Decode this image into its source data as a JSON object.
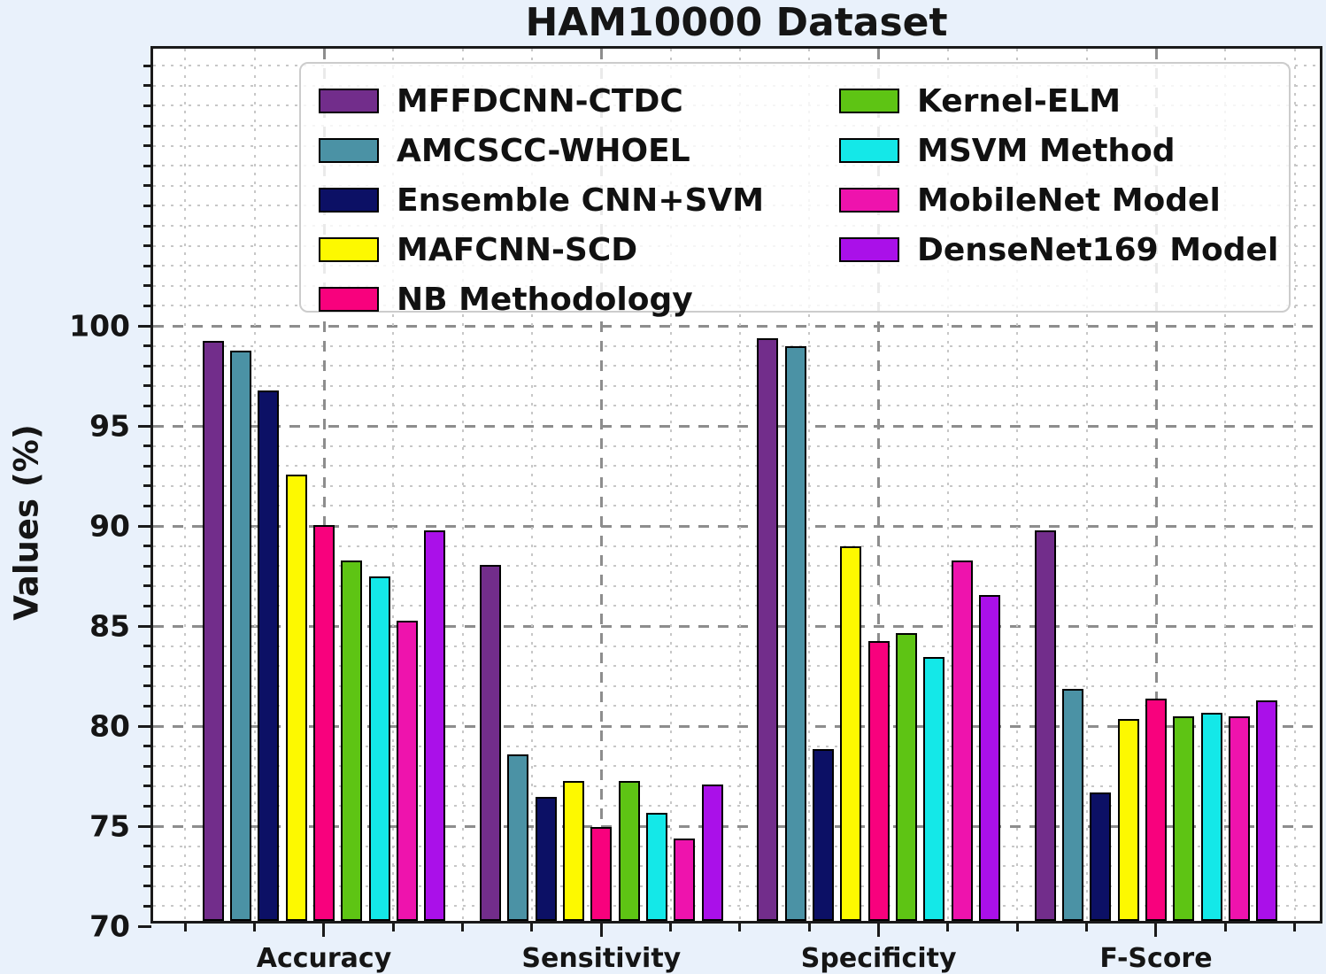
{
  "chart_data": {
    "type": "bar",
    "title": "HAM10000 Dataset",
    "xlabel": "",
    "ylabel": "Values (%)",
    "categories": [
      "Accuracy",
      "Sensitivity",
      "Specificity",
      "F-Score"
    ],
    "series": [
      {
        "name": "MFFDCNN-CTDC",
        "color": "#722d8b",
        "values": [
          99.0,
          87.8,
          99.1,
          89.5
        ]
      },
      {
        "name": "AMCSCC-WHOEL",
        "color": "#4b92a5",
        "values": [
          98.5,
          78.3,
          98.7,
          81.6
        ]
      },
      {
        "name": "Ensemble CNN+SVM",
        "color": "#0c1065",
        "values": [
          96.5,
          76.2,
          78.6,
          76.4
        ]
      },
      {
        "name": "MAFCNN-SCD",
        "color": "#fdf900",
        "values": [
          92.3,
          77.0,
          88.7,
          80.1
        ]
      },
      {
        "name": "NB Methodology",
        "color": "#f8017d",
        "values": [
          89.8,
          74.7,
          84.0,
          81.1
        ]
      },
      {
        "name": "Kernel-ELM",
        "color": "#5ec414",
        "values": [
          88.0,
          77.0,
          84.4,
          80.2
        ]
      },
      {
        "name": "MSVM Method",
        "color": "#14e8e8",
        "values": [
          87.2,
          75.4,
          83.2,
          80.4
        ]
      },
      {
        "name": "MobileNet Model",
        "color": "#ee13ad",
        "values": [
          85.0,
          74.1,
          88.0,
          80.2
        ]
      },
      {
        "name": "DenseNet169 Model",
        "color": "#aa10e9",
        "values": [
          89.5,
          76.8,
          86.3,
          81.0
        ]
      }
    ],
    "ylim": [
      70,
      113.9
    ],
    "yticks": [
      70,
      75,
      80,
      85,
      90,
      95,
      100
    ],
    "grid": "major dashed gray + minor dotted light-gray, horizontal and vertical",
    "legend_position": "upper center inside plot, 2 columns (5 left, 4 right)"
  }
}
